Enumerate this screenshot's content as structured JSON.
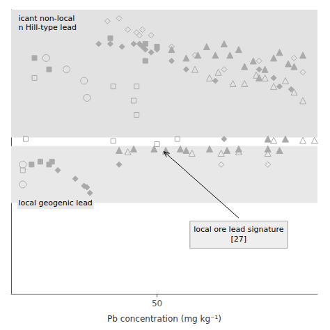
{
  "chart_data": {
    "type": "scatter",
    "xlabel": "Pb concentration (mg kg⁻¹)",
    "xlim": [
      0,
      105
    ],
    "xticks": [
      50
    ],
    "ylim": [
      0,
      1.0
    ],
    "yticks": [],
    "tick_labels": "x",
    "grid": false,
    "bands": [
      {
        "ymin": 0.55,
        "ymax": 1.0,
        "color": "#e2e2e2"
      },
      {
        "ymin": 0.32,
        "ymax": 0.52,
        "color": "#e8e8e8"
      }
    ],
    "series": [
      {
        "marker": "circle_open",
        "color": "#aaaaaa",
        "x": [
          12,
          19,
          25,
          26
        ],
        "values": [
          0.83,
          0.79,
          0.75,
          0.69
        ]
      },
      {
        "marker": "square_filled",
        "color": "#aaaaaa",
        "x": [
          8,
          13,
          34,
          46,
          50,
          46
        ],
        "values": [
          0.83,
          0.79,
          0.9,
          0.88,
          0.87,
          0.82
        ]
      },
      {
        "marker": "square_open",
        "color": "#aaaaaa",
        "x": [
          8,
          35,
          43,
          42,
          43
        ],
        "values": [
          0.76,
          0.73,
          0.73,
          0.68,
          0.63
        ]
      },
      {
        "marker": "diamond_open",
        "color": "#aaaaaa",
        "x": [
          33,
          37,
          40,
          43,
          44,
          45,
          48,
          55,
          63,
          73,
          85,
          97,
          100
        ],
        "values": [
          0.96,
          0.97,
          0.93,
          0.92,
          0.91,
          0.93,
          0.91,
          0.87,
          0.84,
          0.79,
          0.82,
          0.83,
          0.78
        ]
      },
      {
        "marker": "diamond_filled",
        "color": "#aaaaaa",
        "x": [
          30,
          34,
          38,
          42,
          44,
          45,
          46,
          48,
          50,
          55,
          60,
          70,
          85,
          90,
          92,
          96
        ],
        "values": [
          0.88,
          0.88,
          0.87,
          0.88,
          0.88,
          0.87,
          0.86,
          0.85,
          0.86,
          0.82,
          0.79,
          0.75,
          0.79,
          0.76,
          0.73,
          0.72
        ]
      },
      {
        "marker": "triangle_filled",
        "color": "#aaaaaa",
        "x": [
          55,
          60,
          64,
          67,
          70,
          73,
          75,
          78,
          80,
          83,
          85,
          87,
          90,
          92,
          95,
          97,
          100
        ],
        "values": [
          0.86,
          0.83,
          0.84,
          0.87,
          0.84,
          0.88,
          0.84,
          0.86,
          0.8,
          0.82,
          0.76,
          0.79,
          0.83,
          0.85,
          0.81,
          0.8,
          0.84
        ]
      },
      {
        "marker": "triangle_open",
        "color": "#aaaaaa",
        "x": [
          63,
          68,
          71,
          76,
          80,
          84,
          87,
          90,
          94,
          97,
          100
        ],
        "values": [
          0.79,
          0.76,
          0.78,
          0.74,
          0.74,
          0.77,
          0.76,
          0.73,
          0.75,
          0.71,
          0.68
        ]
      },
      {
        "marker": "square_open",
        "color": "#aaaaaa",
        "x": [
          50,
          57
        ],
        "values": [
          0.527,
          0.545
        ]
      },
      {
        "marker": "square_open",
        "color": "#aaaaaa",
        "x": [
          35
        ],
        "values": [
          0.538
        ]
      },
      {
        "marker": "square_open",
        "color": "#aaaaaa",
        "x": [
          5
        ],
        "values": [
          0.545
        ]
      },
      {
        "marker": "diamond_filled",
        "color": "#aaaaaa",
        "x": [
          73
        ],
        "values": [
          0.545
        ]
      },
      {
        "marker": "triangle_filled",
        "color": "#aaaaaa",
        "x": [
          88,
          94
        ],
        "values": [
          0.545,
          0.545
        ]
      },
      {
        "marker": "triangle_open",
        "color": "#aaaaaa",
        "x": [
          90,
          100,
          104
        ],
        "values": [
          0.54,
          0.54,
          0.54
        ]
      },
      {
        "marker": "square_filled",
        "color": "#aaaaaa",
        "x": [
          7,
          10,
          13,
          14
        ],
        "values": [
          0.455,
          0.465,
          0.455,
          0.465
        ]
      },
      {
        "marker": "square_open",
        "color": "#aaaaaa",
        "x": [
          4
        ],
        "values": [
          0.435
        ]
      },
      {
        "marker": "circle_open",
        "color": "#aaaaaa",
        "x": [
          4,
          4
        ],
        "values": [
          0.455,
          0.385
        ]
      },
      {
        "marker": "diamond_filled",
        "color": "#aaaaaa",
        "x": [
          16,
          22,
          25,
          26,
          27,
          37
        ],
        "values": [
          0.435,
          0.405,
          0.38,
          0.375,
          0.355,
          0.455
        ]
      },
      {
        "marker": "triangle_filled",
        "color": "#aaaaaa",
        "x": [
          37,
          42,
          49,
          53,
          58,
          60,
          68,
          74,
          78,
          88,
          92
        ],
        "values": [
          0.505,
          0.51,
          0.51,
          0.505,
          0.51,
          0.505,
          0.51,
          0.505,
          0.51,
          0.51,
          0.505
        ]
      },
      {
        "marker": "triangle_open",
        "color": "#aaaaaa",
        "x": [
          40,
          53,
          62,
          72,
          78,
          88
        ],
        "values": [
          0.5,
          0.5,
          0.495,
          0.495,
          0.5,
          0.495
        ]
      },
      {
        "marker": "diamond_open",
        "color": "#aaaaaa",
        "x": [
          72,
          88
        ],
        "values": [
          0.455,
          0.455
        ]
      }
    ],
    "annotations": [
      {
        "text": "local ore lead signature\n[27]",
        "xy": [
          52,
          0.504
        ],
        "xytext": [
          78,
          0.255
        ]
      },
      {
        "text": "icant non-local\nn Hill-type lead",
        "xy": [
          2,
          0.99
        ],
        "color": "#e2e2e2"
      },
      {
        "text": "local geogenic lead",
        "xy": [
          2,
          0.34
        ],
        "color": "#e8e8e8"
      }
    ]
  }
}
